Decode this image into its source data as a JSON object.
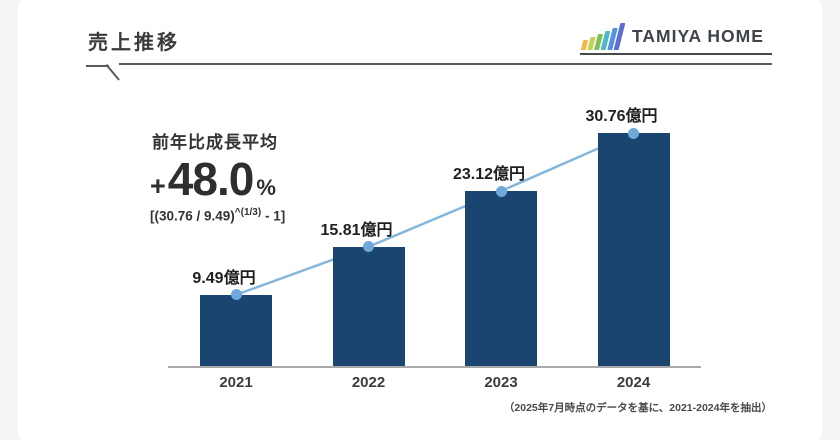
{
  "header": {
    "title": "売上推移",
    "logo": {
      "text": "TAMIYA HOME",
      "bar_colors": [
        "#f2b843",
        "#c3d054",
        "#7dc154",
        "#4fb8c9",
        "#5592dd",
        "#5b6ed2"
      ]
    }
  },
  "annotation": {
    "label": "前年比成長平均",
    "plus": "+",
    "value": "48.0",
    "percent": "%",
    "formula_prefix": "[(30.76 / 9.49)",
    "formula_sup": "^(1/3)",
    "formula_suffix": " - 1]"
  },
  "chart_data": {
    "type": "bar",
    "title": "売上推移",
    "categories": [
      "2021",
      "2022",
      "2023",
      "2024"
    ],
    "values": [
      9.49,
      15.81,
      23.12,
      30.76
    ],
    "value_labels": [
      "9.49億円",
      "15.81億円",
      "23.12億円",
      "30.76億円"
    ],
    "unit": "億円",
    "xlabel": "",
    "ylabel": "",
    "ylim": [
      0,
      32
    ],
    "grid": false,
    "legend": "none",
    "bar_color": "#1a4570",
    "line_color": "#85b7dc",
    "marker_color": "#6fa9dc",
    "overlay_line_through_bar_tops": true
  },
  "footer": {
    "note": "（2025年7月時点のデータを基に、2021-2024年を抽出）"
  }
}
